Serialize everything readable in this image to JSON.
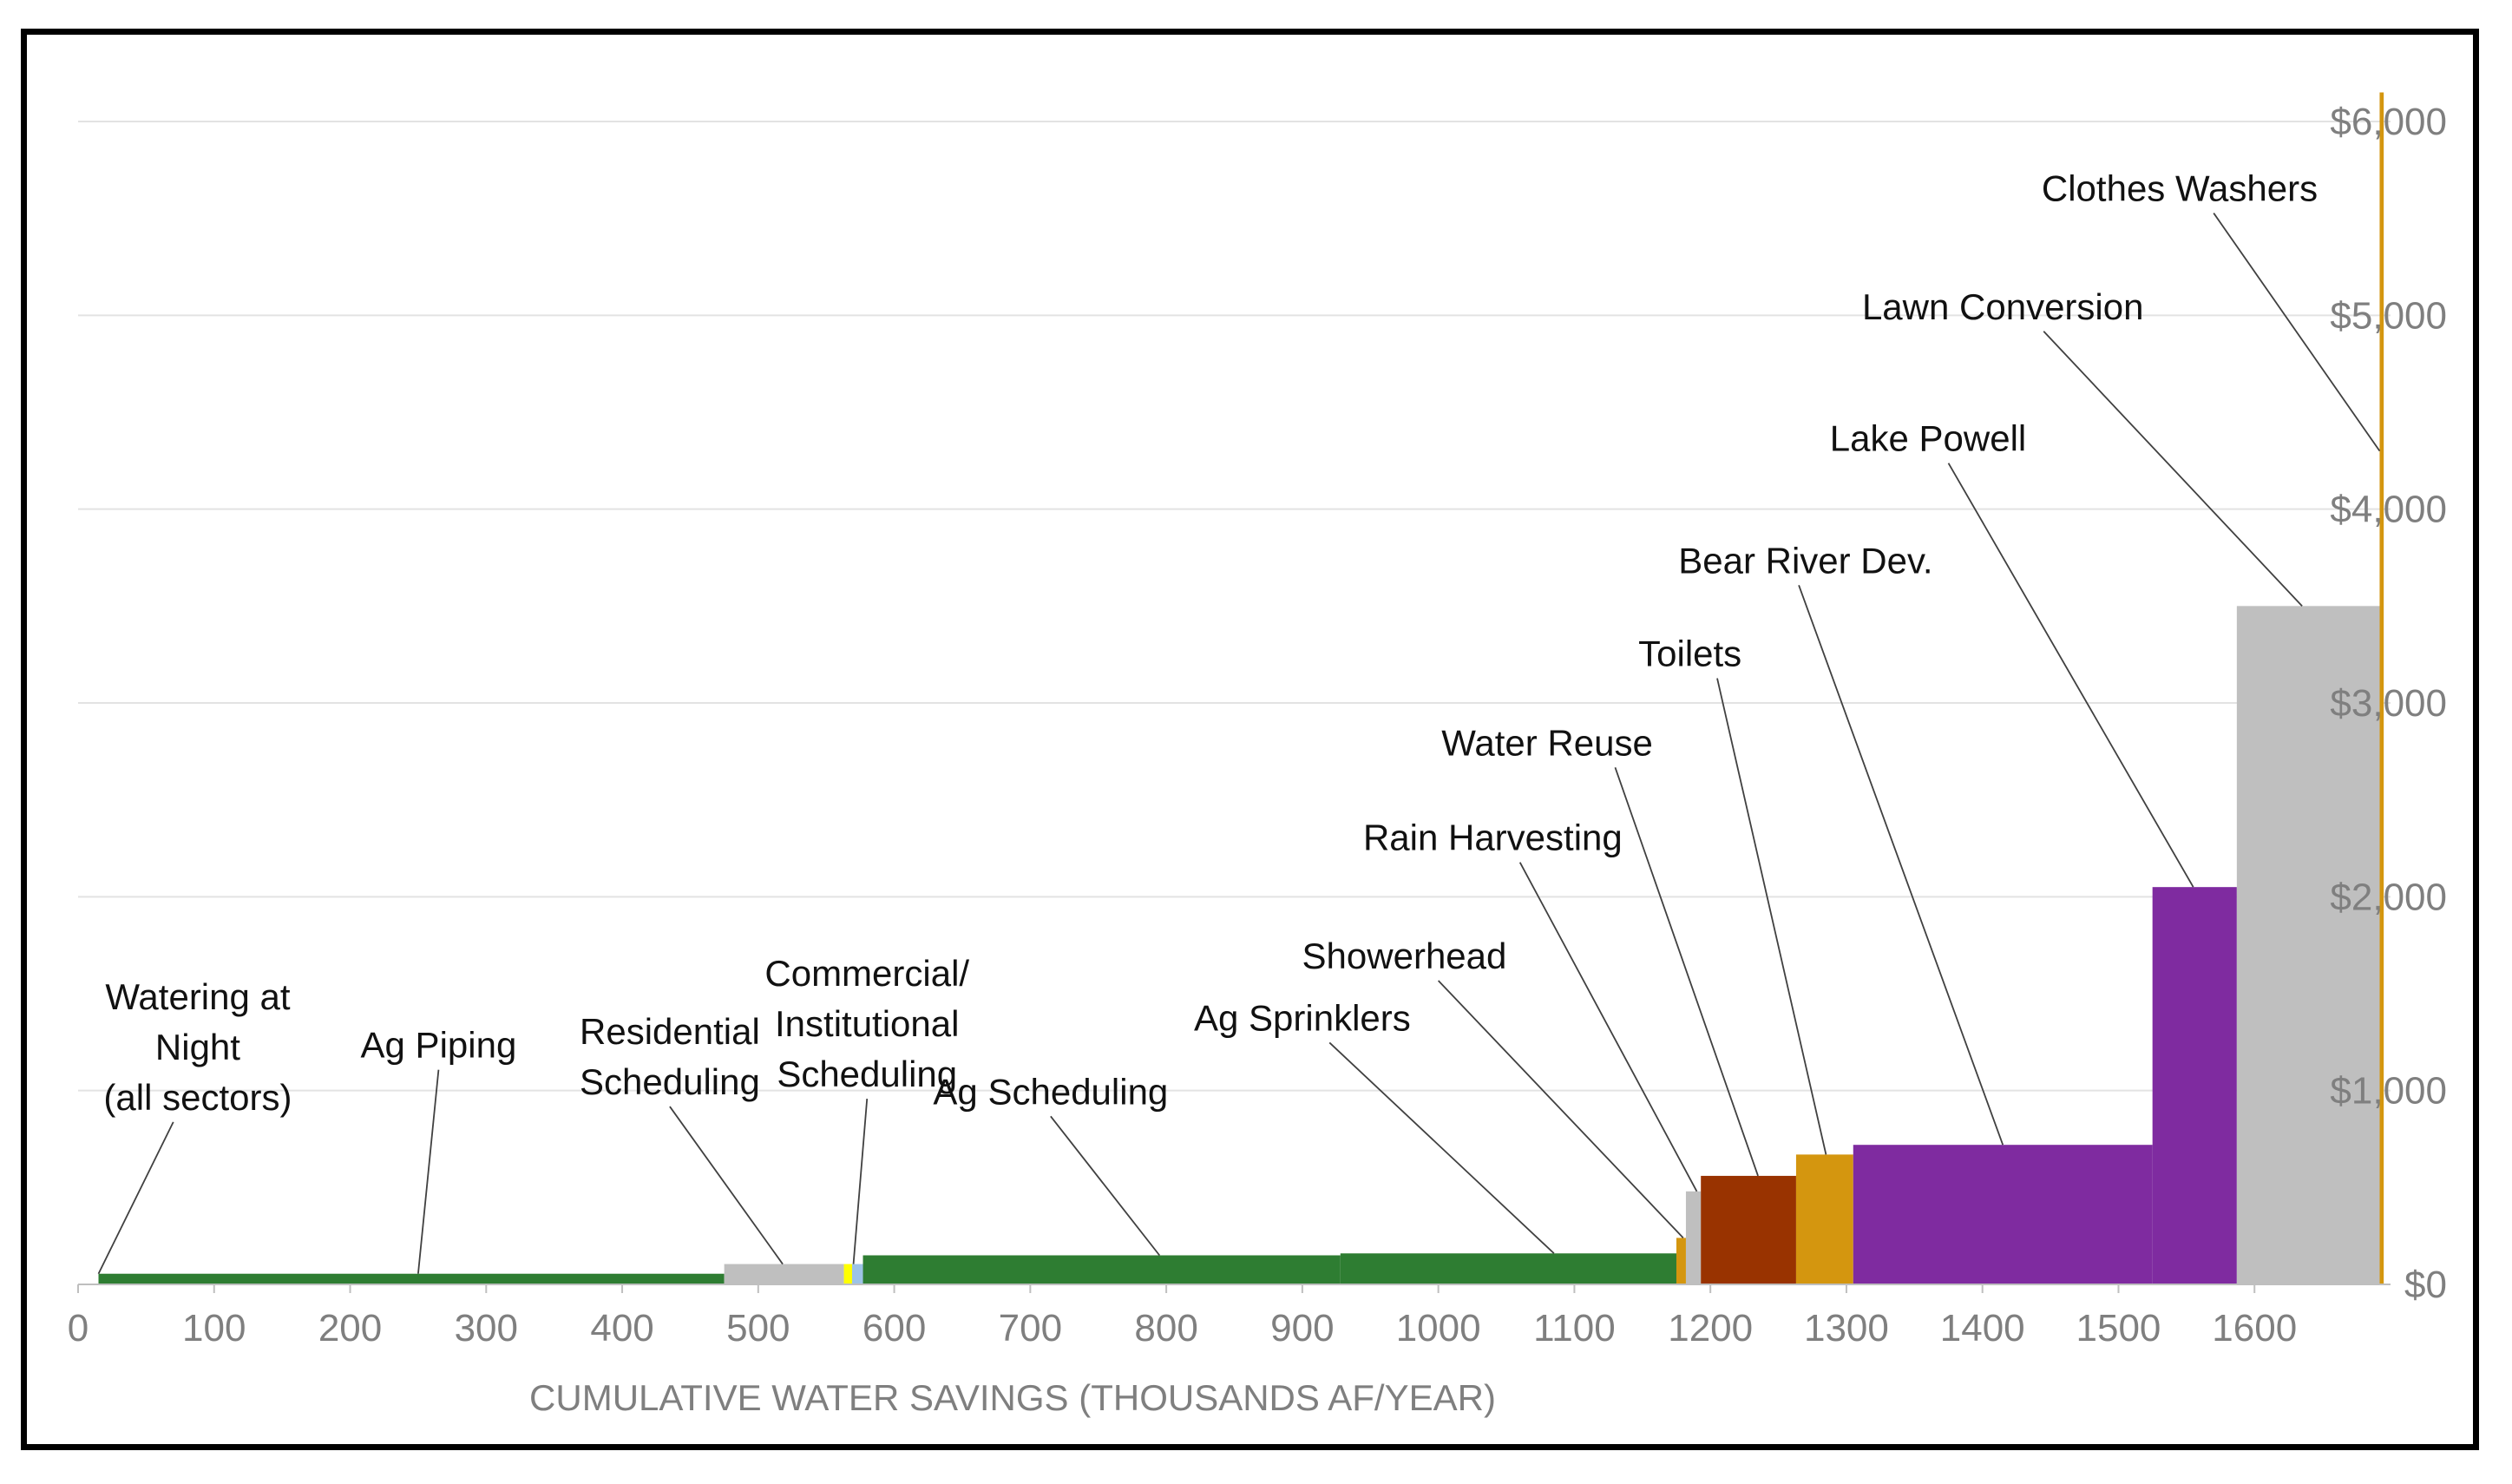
{
  "chart_data": {
    "type": "bar",
    "title": "",
    "xlabel": "CUMULATIVE WATER SAVINGS (THOUSANDS AF/YEAR)",
    "ylabel": "",
    "xlim": [
      0,
      1690
    ],
    "ylim": [
      0,
      6000
    ],
    "x_ticks": [
      "0",
      "100",
      "200",
      "300",
      "400",
      "500",
      "600",
      "700",
      "800",
      "900",
      "1000",
      "1100",
      "1200",
      "1300",
      "1400",
      "1500",
      "1600"
    ],
    "y_ticks": [
      "$0",
      "$1,000",
      "$2,000",
      "$3,000",
      "$4,000",
      "$5,000",
      "$6,000"
    ],
    "y_tick_values": [
      0,
      1000,
      2000,
      3000,
      4000,
      5000,
      6000
    ],
    "x_tick_values": [
      0,
      100,
      200,
      300,
      400,
      500,
      600,
      700,
      800,
      900,
      1000,
      1100,
      1200,
      1300,
      1400,
      1500,
      1600
    ],
    "grid": "horizontal",
    "y_axis_position": "right",
    "colors": {
      "green": "#2e7d32",
      "gray": "#bfbfbf",
      "yellow": "#ffff00",
      "lightblue": "#9dc3e6",
      "orange": "#d4960f",
      "brown": "#993300",
      "purple": "#7f2ba0"
    },
    "series": [
      {
        "x0": 15,
        "x1": 475,
        "y": 55,
        "color": "green"
      },
      {
        "x0": 475,
        "x1": 563,
        "y": 105,
        "color": "gray"
      },
      {
        "x0": 563,
        "x1": 569,
        "y": 105,
        "color": "yellow"
      },
      {
        "x0": 569,
        "x1": 577,
        "y": 105,
        "color": "lightblue"
      },
      {
        "x0": 577,
        "x1": 928,
        "y": 150,
        "color": "green"
      },
      {
        "x0": 928,
        "x1": 1175,
        "y": 160,
        "color": "green"
      },
      {
        "x0": 1175,
        "x1": 1182,
        "y": 240,
        "color": "orange"
      },
      {
        "x0": 1182,
        "x1": 1193,
        "y": 480,
        "color": "gray"
      },
      {
        "x0": 1193,
        "x1": 1263,
        "y": 560,
        "color": "brown"
      },
      {
        "x0": 1263,
        "x1": 1305,
        "y": 670,
        "color": "orange"
      },
      {
        "x0": 1305,
        "x1": 1525,
        "y": 720,
        "color": "purple"
      },
      {
        "x0": 1525,
        "x1": 1587,
        "y": 2050,
        "color": "purple"
      },
      {
        "x0": 1587,
        "x1": 1692,
        "y": 3500,
        "color": "gray"
      },
      {
        "x0": 1692,
        "x1": 1695,
        "y": 6150,
        "color": "orange"
      }
    ],
    "annotations": [
      {
        "lines": [
          "Watering at",
          "Night",
          "(all sectors)"
        ],
        "x": 88,
        "y": 1420,
        "pt": [
          15,
          55
        ],
        "anchor_x": 70,
        "anchor_y": 1680
      },
      {
        "lines": [
          "Ag Piping"
        ],
        "x": 265,
        "y": 1170,
        "pt": [
          250,
          55
        ],
        "anchor_x": 265,
        "anchor_y": 1220
      },
      {
        "lines": [
          "Residential",
          "Scheduling"
        ],
        "x": 435,
        "y": 1240,
        "pt": [
          518,
          105
        ],
        "anchor_x": 435,
        "anchor_y": 1275
      },
      {
        "lines": [
          "Commercial/",
          "Institutional",
          "Scheduling"
        ],
        "x": 580,
        "y": 1540,
        "pt": [
          570,
          105
        ],
        "anchor_x": 580,
        "anchor_y": 1600
      },
      {
        "lines": [
          "Ag Scheduling"
        ],
        "x": 715,
        "y": 930,
        "pt": [
          795,
          150
        ],
        "anchor_x": 715,
        "anchor_y": 970
      },
      {
        "lines": [
          "Ag Sprinklers"
        ],
        "x": 900,
        "y": 1310,
        "pt": [
          1085,
          160
        ],
        "anchor_x": 920,
        "anchor_y": 1335
      },
      {
        "lines": [
          "Showerhead"
        ],
        "x": 975,
        "y": 1630,
        "pt": [
          1180,
          240
        ],
        "anchor_x": 1000,
        "anchor_y": 1640
      },
      {
        "lines": [
          "Rain Harvesting"
        ],
        "x": 1040,
        "y": 2240,
        "pt": [
          1190,
          480
        ],
        "anchor_x": 1060,
        "anchor_y": 2250
      },
      {
        "lines": [
          "Water Reuse"
        ],
        "x": 1080,
        "y": 2730,
        "pt": [
          1235,
          560
        ],
        "anchor_x": 1130,
        "anchor_y": 2730
      },
      {
        "lines": [
          "Toilets"
        ],
        "x": 1185,
        "y": 3190,
        "pt": [
          1285,
          670
        ],
        "anchor_x": 1205,
        "anchor_y": 3190
      },
      {
        "lines": [
          "Bear River Dev."
        ],
        "x": 1270,
        "y": 3670,
        "pt": [
          1415,
          720
        ],
        "anchor_x": 1265,
        "anchor_y": 3680
      },
      {
        "lines": [
          "Lake Powell"
        ],
        "x": 1360,
        "y": 4300,
        "pt": [
          1555,
          2050
        ],
        "anchor_x": 1375,
        "anchor_y": 4290
      },
      {
        "lines": [
          "Lawn Conversion"
        ],
        "x": 1415,
        "y": 4980,
        "pt": [
          1635,
          3500
        ],
        "anchor_x": 1445,
        "anchor_y": 4990
      },
      {
        "lines": [
          "Clothes Washers"
        ],
        "x": 1545,
        "y": 5590,
        "pt": [
          1692,
          4300
        ],
        "anchor_x": 1570,
        "anchor_y": 5590
      }
    ]
  }
}
